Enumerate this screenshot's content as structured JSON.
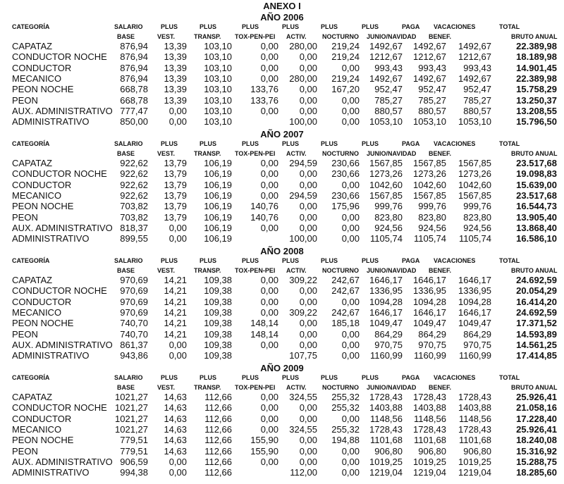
{
  "title": "ANEXO I",
  "headers": {
    "row1": [
      "CATEGORÍA",
      "SALARIO",
      "PLUS",
      "PLUS",
      "PLUS",
      "PLUS",
      "PLUS",
      "PLUS",
      "PAGA",
      "VACACIONES",
      "TOTAL"
    ],
    "row2": [
      "BASE",
      "VEST.",
      "TRANSP.",
      "TOX-PEN-PEI",
      "ACTIV.",
      "NOCTURNO",
      "JUNIO/NAVIDAD",
      "BENEF.",
      "BRUTO ANUAL"
    ]
  },
  "sections": [
    {
      "year_label": "AÑO 2006",
      "rows": [
        {
          "categoria": "CAPATAZ",
          "values": [
            "876,94",
            "13,39",
            "103,10",
            "0,00",
            "280,00",
            "219,24",
            "1492,67",
            "1492,67",
            "1492,67"
          ],
          "total": "22.389,98"
        },
        {
          "categoria": "CONDUCTOR NOCHE",
          "values": [
            "876,94",
            "13,39",
            "103,10",
            "0,00",
            "0,00",
            "219,24",
            "1212,67",
            "1212,67",
            "1212,67"
          ],
          "total": "18.189,98"
        },
        {
          "categoria": "CONDUCTOR",
          "values": [
            "876,94",
            "13,39",
            "103,10",
            "0,00",
            "0,00",
            "0,00",
            "993,43",
            "993,43",
            "993,43"
          ],
          "total": "14.901,45"
        },
        {
          "categoria": "MECANICO",
          "values": [
            "876,94",
            "13,39",
            "103,10",
            "0,00",
            "280,00",
            "219,24",
            "1492,67",
            "1492,67",
            "1492,67"
          ],
          "total": "22.389,98"
        },
        {
          "categoria": "PEON NOCHE",
          "values": [
            "668,78",
            "13,39",
            "103,10",
            "133,76",
            "0,00",
            "167,20",
            "952,47",
            "952,47",
            "952,47"
          ],
          "total": "15.758,29"
        },
        {
          "categoria": "PEON",
          "values": [
            "668,78",
            "13,39",
            "103,10",
            "133,76",
            "0,00",
            "0,00",
            "785,27",
            "785,27",
            "785,27"
          ],
          "total": "13.250,37"
        },
        {
          "categoria": "AUX. ADMINISTRATIVO",
          "values": [
            "777,47",
            "0,00",
            "103,10",
            "0,00",
            "0,00",
            "0,00",
            "880,57",
            "880,57",
            "880,57"
          ],
          "total": "13.208,55"
        },
        {
          "categoria": "ADMINISTRATIVO",
          "values": [
            "850,00",
            "0,00",
            "103,10",
            "",
            "100,00",
            "0,00",
            "1053,10",
            "1053,10",
            "1053,10"
          ],
          "total": "15.796,50"
        }
      ]
    },
    {
      "year_label": "AÑO 2007",
      "rows": [
        {
          "categoria": "CAPATAZ",
          "values": [
            "922,62",
            "13,79",
            "106,19",
            "0,00",
            "294,59",
            "230,66",
            "1567,85",
            "1567,85",
            "1567,85"
          ],
          "total": "23.517,68"
        },
        {
          "categoria": "CONDUCTOR NOCHE",
          "values": [
            "922,62",
            "13,79",
            "106,19",
            "0,00",
            "0,00",
            "230,66",
            "1273,26",
            "1273,26",
            "1273,26"
          ],
          "total": "19.098,83"
        },
        {
          "categoria": "CONDUCTOR",
          "values": [
            "922,62",
            "13,79",
            "106,19",
            "0,00",
            "0,00",
            "0,00",
            "1042,60",
            "1042,60",
            "1042,60"
          ],
          "total": "15.639,00"
        },
        {
          "categoria": "MECANICO",
          "values": [
            "922,62",
            "13,79",
            "106,19",
            "0,00",
            "294,59",
            "230,66",
            "1567,85",
            "1567,85",
            "1567,85"
          ],
          "total": "23.517,68"
        },
        {
          "categoria": "PEON NOCHE",
          "values": [
            "703,82",
            "13,79",
            "106,19",
            "140,76",
            "0,00",
            "175,96",
            "999,76",
            "999,76",
            "999,76"
          ],
          "total": "16.544,73"
        },
        {
          "categoria": "PEON",
          "values": [
            "703,82",
            "13,79",
            "106,19",
            "140,76",
            "0,00",
            "0,00",
            "823,80",
            "823,80",
            "823,80"
          ],
          "total": "13.905,40"
        },
        {
          "categoria": "AUX. ADMINISTRATIVO",
          "values": [
            "818,37",
            "0,00",
            "106,19",
            "0,00",
            "0,00",
            "0,00",
            "924,56",
            "924,56",
            "924,56"
          ],
          "total": "13.868,40"
        },
        {
          "categoria": "ADMINISTRATIVO",
          "values": [
            "899,55",
            "0,00",
            "106,19",
            "",
            "100,00",
            "0,00",
            "1105,74",
            "1105,74",
            "1105,74"
          ],
          "total": "16.586,10"
        }
      ]
    },
    {
      "year_label": "AÑO 2008",
      "rows": [
        {
          "categoria": "CAPATAZ",
          "values": [
            "970,69",
            "14,21",
            "109,38",
            "0,00",
            "309,22",
            "242,67",
            "1646,17",
            "1646,17",
            "1646,17"
          ],
          "total": "24.692,59"
        },
        {
          "categoria": "CONDUCTOR NOCHE",
          "values": [
            "970,69",
            "14,21",
            "109,38",
            "0,00",
            "0,00",
            "242,67",
            "1336,95",
            "1336,95",
            "1336,95"
          ],
          "total": "20.054,29"
        },
        {
          "categoria": "CONDUCTOR",
          "values": [
            "970,69",
            "14,21",
            "109,38",
            "0,00",
            "0,00",
            "0,00",
            "1094,28",
            "1094,28",
            "1094,28"
          ],
          "total": "16.414,20"
        },
        {
          "categoria": "MECANICO",
          "values": [
            "970,69",
            "14,21",
            "109,38",
            "0,00",
            "309,22",
            "242,67",
            "1646,17",
            "1646,17",
            "1646,17"
          ],
          "total": "24.692,59"
        },
        {
          "categoria": "PEON NOCHE",
          "values": [
            "740,70",
            "14,21",
            "109,38",
            "148,14",
            "0,00",
            "185,18",
            "1049,47",
            "1049,47",
            "1049,47"
          ],
          "total": "17.371,52"
        },
        {
          "categoria": "PEON",
          "values": [
            "740,70",
            "14,21",
            "109,38",
            "148,14",
            "0,00",
            "0,00",
            "864,29",
            "864,29",
            "864,29"
          ],
          "total": "14.593,89"
        },
        {
          "categoria": "AUX. ADMINISTRATIVO",
          "values": [
            "861,37",
            "0,00",
            "109,38",
            "0,00",
            "0,00",
            "0,00",
            "970,75",
            "970,75",
            "970,75"
          ],
          "total": "14.561,25"
        },
        {
          "categoria": "ADMINISTRATIVO",
          "values": [
            "943,86",
            "0,00",
            "109,38",
            "",
            "107,75",
            "0,00",
            "1160,99",
            "1160,99",
            "1160,99"
          ],
          "total": "17.414,85"
        }
      ]
    },
    {
      "year_label": "AÑO 2009",
      "rows": [
        {
          "categoria": "CAPATAZ",
          "values": [
            "1021,27",
            "14,63",
            "112,66",
            "0,00",
            "324,55",
            "255,32",
            "1728,43",
            "1728,43",
            "1728,43"
          ],
          "total": "25.926,41"
        },
        {
          "categoria": "CONDUCTOR NOCHE",
          "values": [
            "1021,27",
            "14,63",
            "112,66",
            "0,00",
            "0,00",
            "255,32",
            "1403,88",
            "1403,88",
            "1403,88"
          ],
          "total": "21.058,16"
        },
        {
          "categoria": "CONDUCTOR",
          "values": [
            "1021,27",
            "14,63",
            "112,66",
            "0,00",
            "0,00",
            "0,00",
            "1148,56",
            "1148,56",
            "1148,56"
          ],
          "total": "17.228,40"
        },
        {
          "categoria": "MECANICO",
          "values": [
            "1021,27",
            "14,63",
            "112,66",
            "0,00",
            "324,55",
            "255,32",
            "1728,43",
            "1728,43",
            "1728,43"
          ],
          "total": "25.926,41"
        },
        {
          "categoria": "PEON NOCHE",
          "values": [
            "779,51",
            "14,63",
            "112,66",
            "155,90",
            "0,00",
            "194,88",
            "1101,68",
            "1101,68",
            "1101,68"
          ],
          "total": "18.240,08"
        },
        {
          "categoria": "PEON",
          "values": [
            "779,51",
            "14,63",
            "112,66",
            "155,90",
            "0,00",
            "0,00",
            "906,80",
            "906,80",
            "906,80"
          ],
          "total": "15.316,92"
        },
        {
          "categoria": "AUX. ADMINISTRATIVO",
          "values": [
            "906,59",
            "0,00",
            "112,66",
            "0,00",
            "0,00",
            "0,00",
            "1019,25",
            "1019,25",
            "1019,25"
          ],
          "total": "15.288,75"
        },
        {
          "categoria": "ADMINISTRATIVO",
          "values": [
            "994,38",
            "0,00",
            "112,66",
            "",
            "112,00",
            "0,00",
            "1219,04",
            "1219,04",
            "1219,04"
          ],
          "total": "18.285,60"
        }
      ]
    }
  ]
}
